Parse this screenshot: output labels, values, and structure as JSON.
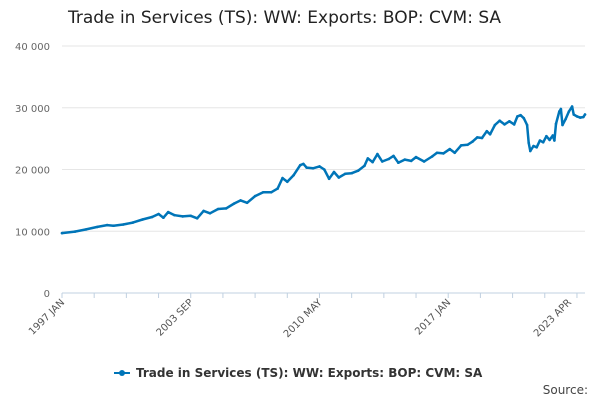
{
  "chart_data": {
    "type": "line",
    "title": "Trade in Services (TS): WW: Exports: BOP: CVM: SA",
    "xlabel": "",
    "ylabel": "",
    "ylim": [
      0,
      40000
    ],
    "yticks": [
      "0",
      "10 000",
      "20 000",
      "30 000",
      "40 000"
    ],
    "yticks_values": [
      0,
      10000,
      20000,
      30000,
      40000
    ],
    "xticks": [
      "1997 JAN",
      "2003 SEP",
      "2010 MAY",
      "2017 JAN",
      "2023 APR"
    ],
    "xticks_index": [
      0,
      80,
      160,
      240,
      315
    ],
    "grid": true,
    "legend_position": "bottom",
    "series": [
      {
        "name": "Trade in Services (TS): WW: Exports: BOP: CVM: SA",
        "color": "#0075b8",
        "points": [
          [
            0,
            9700
          ],
          [
            8,
            9950
          ],
          [
            15,
            10300
          ],
          [
            22,
            10700
          ],
          [
            28,
            11000
          ],
          [
            32,
            10900
          ],
          [
            38,
            11100
          ],
          [
            44,
            11400
          ],
          [
            50,
            11900
          ],
          [
            56,
            12300
          ],
          [
            60,
            12800
          ],
          [
            63,
            12200
          ],
          [
            66,
            13100
          ],
          [
            70,
            12600
          ],
          [
            75,
            12400
          ],
          [
            80,
            12500
          ],
          [
            84,
            12100
          ],
          [
            88,
            13300
          ],
          [
            92,
            12900
          ],
          [
            97,
            13600
          ],
          [
            102,
            13700
          ],
          [
            107,
            14500
          ],
          [
            111,
            15000
          ],
          [
            115,
            14600
          ],
          [
            120,
            15700
          ],
          [
            125,
            16300
          ],
          [
            130,
            16300
          ],
          [
            134,
            16900
          ],
          [
            137,
            18600
          ],
          [
            140,
            18000
          ],
          [
            144,
            19100
          ],
          [
            148,
            20700
          ],
          [
            150,
            20900
          ],
          [
            152,
            20300
          ],
          [
            156,
            20200
          ],
          [
            160,
            20500
          ],
          [
            163,
            20000
          ],
          [
            166,
            18500
          ],
          [
            169,
            19600
          ],
          [
            172,
            18700
          ],
          [
            176,
            19300
          ],
          [
            180,
            19400
          ],
          [
            184,
            19800
          ],
          [
            188,
            20600
          ],
          [
            190,
            21800
          ],
          [
            193,
            21200
          ],
          [
            196,
            22500
          ],
          [
            199,
            21300
          ],
          [
            203,
            21700
          ],
          [
            206,
            22200
          ],
          [
            209,
            21100
          ],
          [
            213,
            21600
          ],
          [
            217,
            21400
          ],
          [
            220,
            22000
          ],
          [
            225,
            21300
          ],
          [
            230,
            22100
          ],
          [
            233,
            22700
          ],
          [
            237,
            22600
          ],
          [
            241,
            23300
          ],
          [
            244,
            22700
          ],
          [
            248,
            23900
          ],
          [
            252,
            24000
          ],
          [
            255,
            24500
          ],
          [
            258,
            25200
          ],
          [
            261,
            25100
          ],
          [
            264,
            26200
          ],
          [
            266,
            25700
          ],
          [
            269,
            27200
          ],
          [
            272,
            27900
          ],
          [
            275,
            27300
          ],
          [
            278,
            27800
          ],
          [
            281,
            27300
          ],
          [
            283,
            28600
          ],
          [
            285,
            28800
          ],
          [
            287,
            28300
          ],
          [
            289,
            27200
          ],
          [
            290,
            24300
          ],
          [
            291,
            23000
          ],
          [
            293,
            23800
          ],
          [
            295,
            23600
          ],
          [
            297,
            24700
          ],
          [
            299,
            24400
          ],
          [
            301,
            25400
          ],
          [
            303,
            24800
          ],
          [
            305,
            25500
          ],
          [
            306,
            24700
          ],
          [
            307,
            27400
          ],
          [
            309,
            29400
          ],
          [
            310,
            29800
          ],
          [
            311,
            27200
          ],
          [
            313,
            28200
          ],
          [
            315,
            29400
          ],
          [
            317,
            30200
          ],
          [
            318,
            28900
          ],
          [
            320,
            28600
          ],
          [
            322,
            28400
          ],
          [
            324,
            28500
          ],
          [
            325,
            28900
          ]
        ]
      }
    ]
  },
  "legend": {
    "label": "Trade in Services (TS): WW: Exports: BOP: CVM: SA"
  },
  "footer": {
    "source_label": "Source:"
  }
}
